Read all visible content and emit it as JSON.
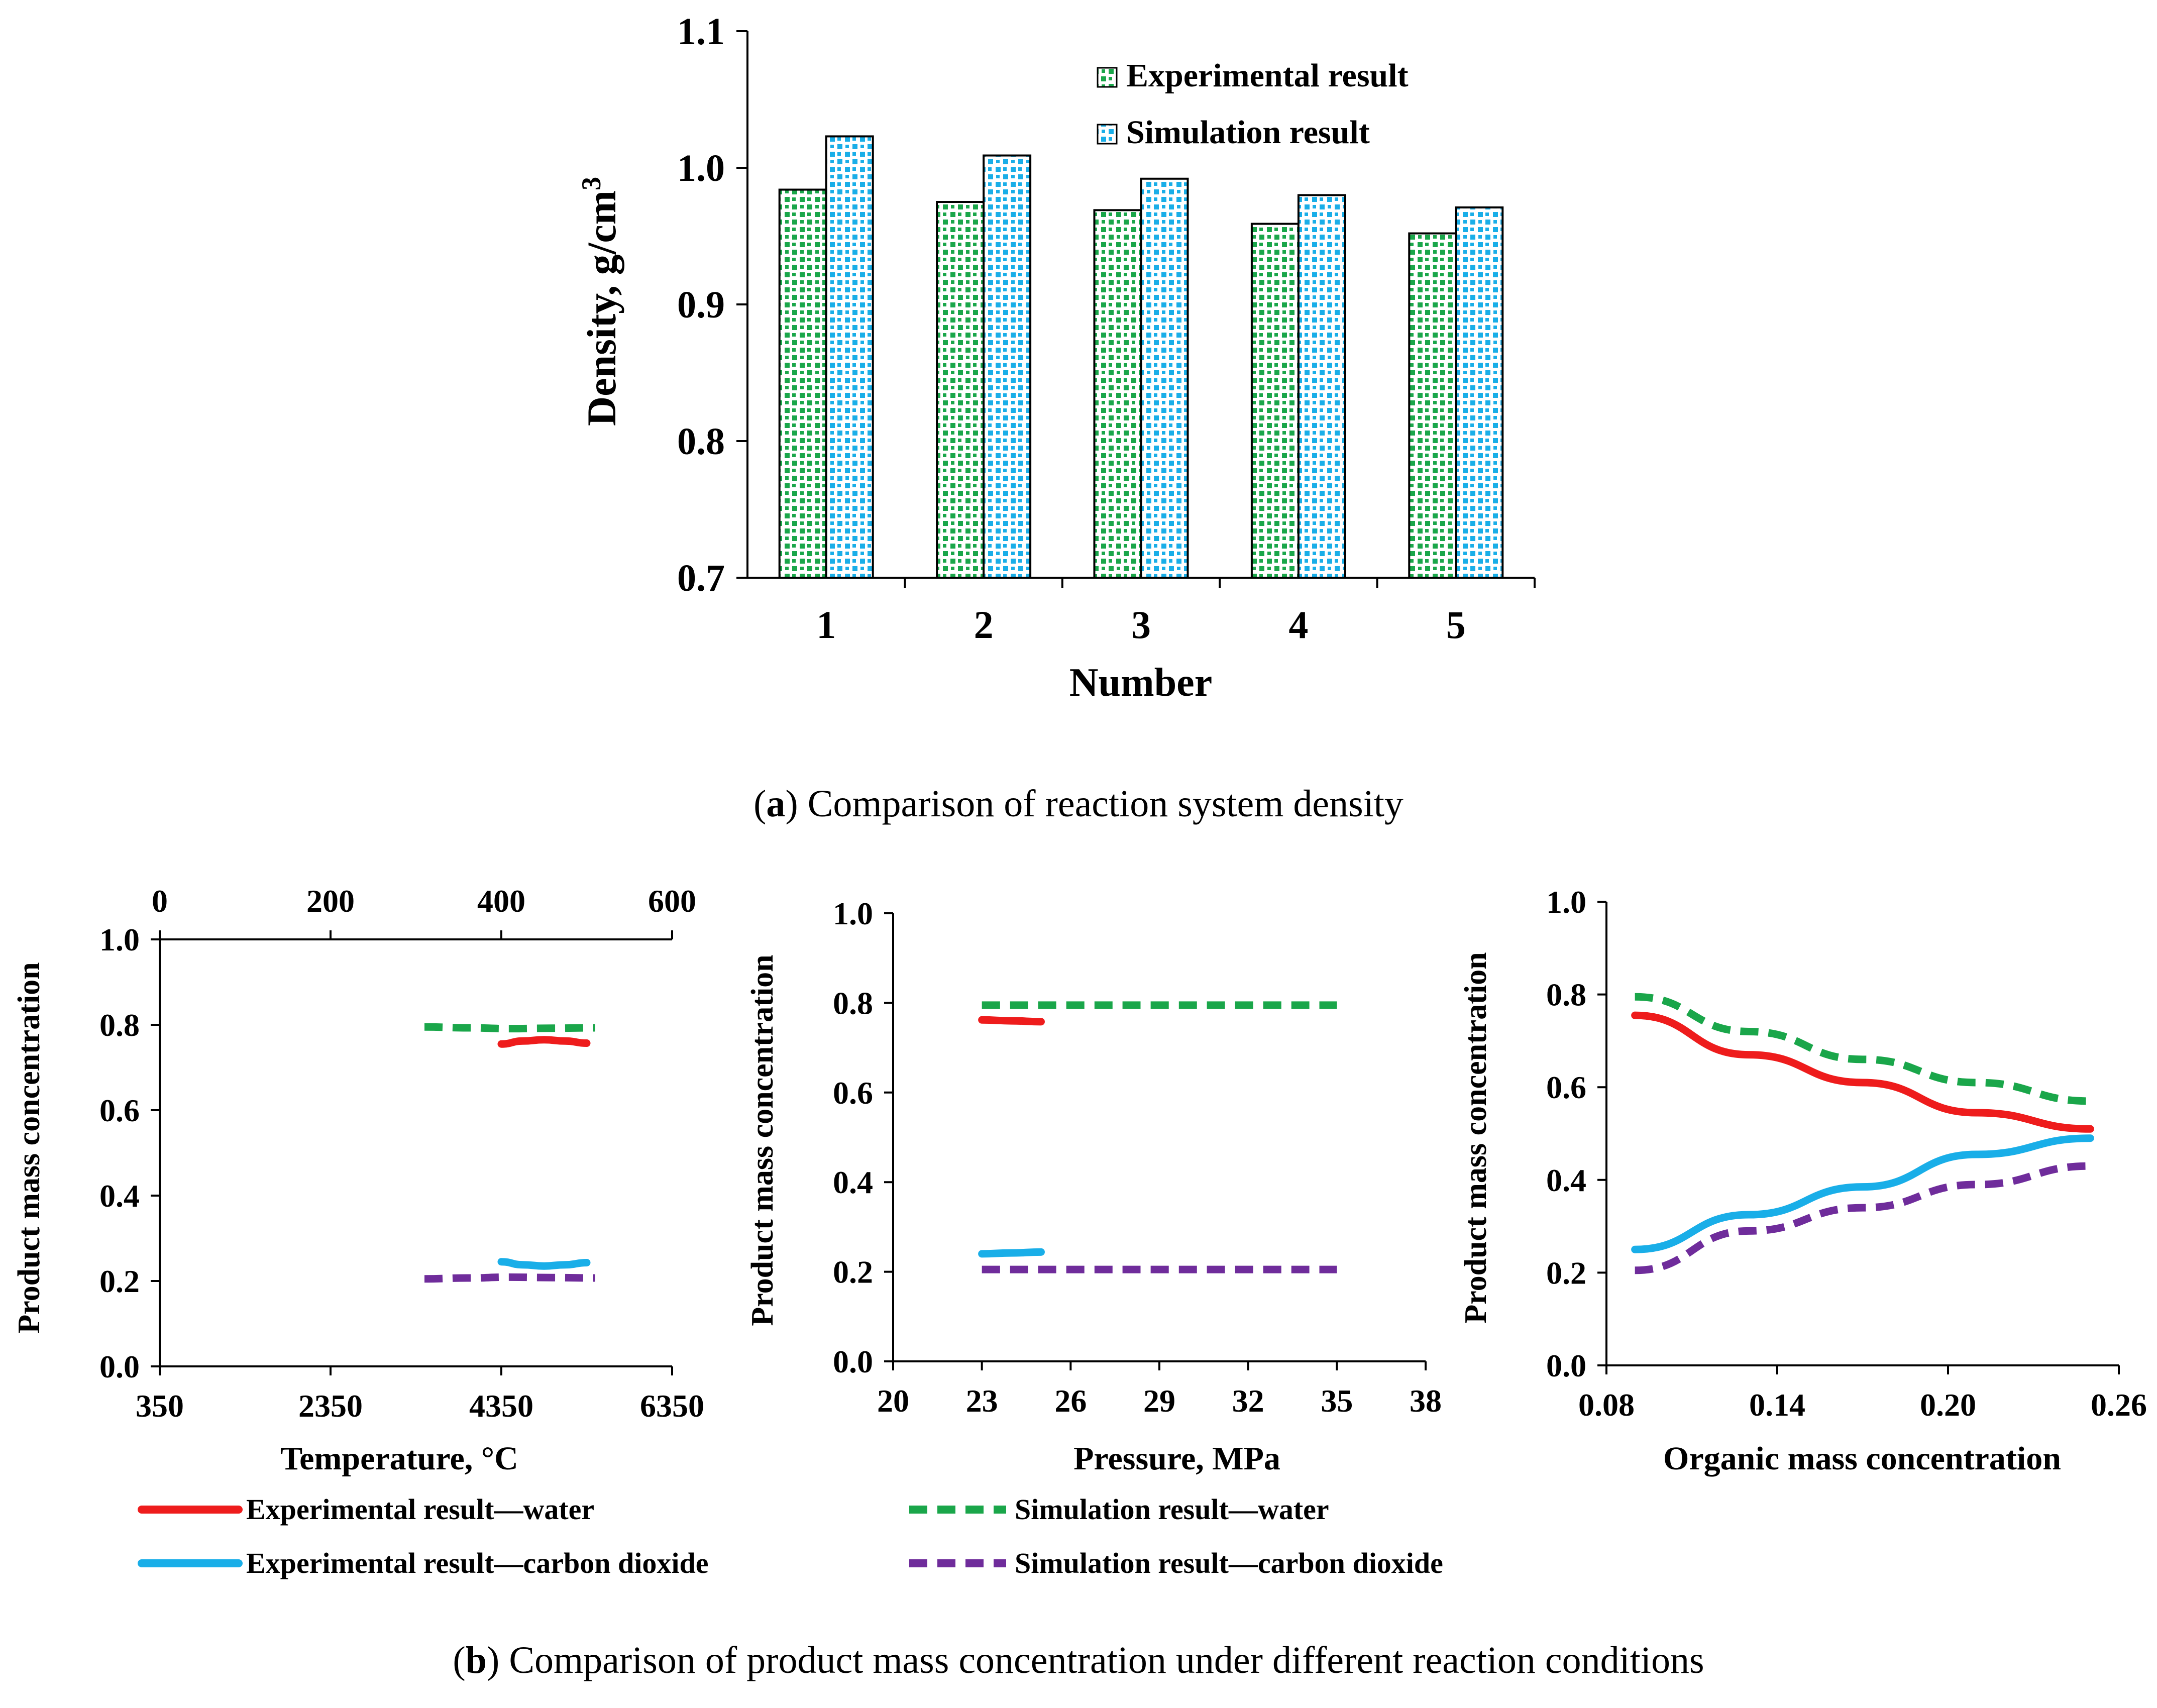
{
  "colors": {
    "experimental_water": "#ee1c1c",
    "simulation_water": "#1aa64a",
    "experimental_co2": "#19aee8",
    "simulation_co2": "#6f2c9b",
    "bar_exp": "#1aa64a",
    "bar_sim": "#19aee8"
  },
  "captions": {
    "a_label": "a",
    "a_text": " Comparison of reaction system density",
    "b_label": "b",
    "b_text": " Comparison of product mass concentration under different reaction conditions"
  },
  "legend_b": {
    "exp_water": "Experimental result—water",
    "sim_water": "Simulation result—water",
    "exp_co2": "Experimental result—carbon dioxide",
    "sim_co2": "Simulation result—carbon dioxide"
  },
  "chart_data": [
    {
      "id": "density",
      "type": "bar",
      "title": "",
      "xlabel": "Number",
      "ylabel_main": "Density,  g/cm",
      "ylabel_sup": "3",
      "ylim": [
        0.7,
        1.1
      ],
      "yticks": [
        "0.7",
        "0.8",
        "0.9",
        "1.0",
        "1.1"
      ],
      "categories": [
        "1",
        "2",
        "3",
        "4",
        "5"
      ],
      "legend": "top-center",
      "series": [
        {
          "name": "Experimental result",
          "values": [
            0.984,
            0.975,
            0.969,
            0.959,
            0.952
          ]
        },
        {
          "name": "Simulation result",
          "values": [
            1.023,
            1.009,
            0.992,
            0.98,
            0.971
          ]
        }
      ]
    },
    {
      "id": "temperature",
      "type": "line",
      "xlabel": "Temperature, °C",
      "ylabel": "Product mass concentration",
      "xlim": [
        350,
        6350
      ],
      "xticks": [
        "350",
        "2350",
        "4350",
        "6350"
      ],
      "x2lim": [
        0,
        600
      ],
      "x2ticks": [
        "0",
        "200",
        "400",
        "600"
      ],
      "ylim": [
        0.0,
        1.0
      ],
      "yticks": [
        "0.0",
        "0.2",
        "0.4",
        "0.6",
        "0.8",
        "1.0"
      ],
      "series": [
        {
          "name": "Experimental result—water",
          "style": "solid",
          "x": [
            400,
            425,
            450,
            475,
            500
          ],
          "y": [
            0.755,
            0.762,
            0.765,
            0.762,
            0.757
          ]
        },
        {
          "name": "Simulation result—water",
          "style": "dashed",
          "x": [
            310,
            360,
            410,
            460,
            510
          ],
          "y": [
            0.795,
            0.793,
            0.791,
            0.792,
            0.793
          ]
        },
        {
          "name": "Experimental result—carbon dioxide",
          "style": "solid",
          "x": [
            400,
            425,
            450,
            475,
            500
          ],
          "y": [
            0.245,
            0.238,
            0.235,
            0.238,
            0.243
          ]
        },
        {
          "name": "Simulation result—carbon dioxide",
          "style": "dashed",
          "x": [
            310,
            360,
            410,
            460,
            510
          ],
          "y": [
            0.205,
            0.207,
            0.209,
            0.208,
            0.207
          ]
        }
      ]
    },
    {
      "id": "pressure",
      "type": "line",
      "xlabel": "Pressure, MPa",
      "ylabel": "Product mass concentration",
      "xlim": [
        20,
        38
      ],
      "xticks": [
        "20",
        "23",
        "26",
        "29",
        "32",
        "35",
        "38"
      ],
      "ylim": [
        0.0,
        1.0
      ],
      "yticks": [
        "0.0",
        "0.2",
        "0.4",
        "0.6",
        "0.8",
        "1.0"
      ],
      "series": [
        {
          "name": "Experimental result—water",
          "style": "solid",
          "x": [
            23,
            24,
            25
          ],
          "y": [
            0.762,
            0.76,
            0.758
          ]
        },
        {
          "name": "Simulation result—water",
          "style": "dashed",
          "x": [
            23,
            26,
            29,
            32,
            35
          ],
          "y": [
            0.795,
            0.795,
            0.795,
            0.795,
            0.795
          ]
        },
        {
          "name": "Experimental result—carbon dioxide",
          "style": "solid",
          "x": [
            23,
            24,
            25
          ],
          "y": [
            0.24,
            0.242,
            0.244
          ]
        },
        {
          "name": "Simulation result—carbon dioxide",
          "style": "dashed",
          "x": [
            23,
            26,
            29,
            32,
            35
          ],
          "y": [
            0.205,
            0.205,
            0.205,
            0.205,
            0.205
          ]
        }
      ]
    },
    {
      "id": "organic",
      "type": "line",
      "xlabel": "Organic mass concentration",
      "ylabel": "Product mass concentration",
      "xlim": [
        0.08,
        0.26
      ],
      "xticks": [
        "0.08",
        "0.14",
        "0.20",
        "0.26"
      ],
      "ylim": [
        0.0,
        1.0
      ],
      "yticks": [
        "0.0",
        "0.2",
        "0.4",
        "0.6",
        "0.8",
        "1.0"
      ],
      "series": [
        {
          "name": "Experimental result—water",
          "style": "solid",
          "x": [
            0.09,
            0.13,
            0.17,
            0.21,
            0.25
          ],
          "y": [
            0.755,
            0.67,
            0.61,
            0.545,
            0.51
          ]
        },
        {
          "name": "Simulation result—water",
          "style": "dashed",
          "x": [
            0.09,
            0.13,
            0.17,
            0.21,
            0.25
          ],
          "y": [
            0.795,
            0.72,
            0.66,
            0.61,
            0.57
          ]
        },
        {
          "name": "Experimental result—carbon dioxide",
          "style": "solid",
          "x": [
            0.09,
            0.13,
            0.17,
            0.21,
            0.25
          ],
          "y": [
            0.25,
            0.325,
            0.385,
            0.455,
            0.49
          ]
        },
        {
          "name": "Simulation result—carbon dioxide",
          "style": "dashed",
          "x": [
            0.09,
            0.13,
            0.17,
            0.21,
            0.25
          ],
          "y": [
            0.205,
            0.29,
            0.34,
            0.39,
            0.43
          ]
        }
      ]
    }
  ]
}
